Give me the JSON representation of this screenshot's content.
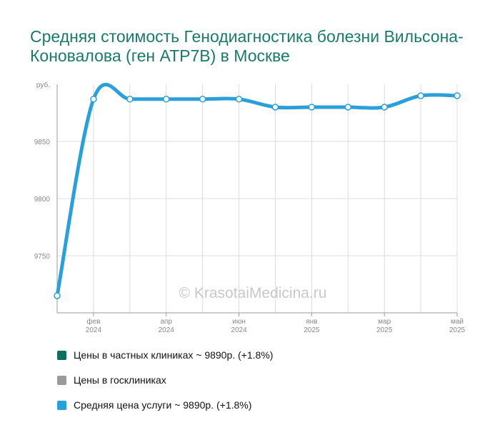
{
  "title": "Средняя стоимость Генодиагностика болезни Вильсона-Коновалова (ген ATP7B) в Москве",
  "watermark": "© KrasotaiMedicina.ru",
  "colors": {
    "series_line": "#2b9fd8",
    "private": "#0f6e5e",
    "public": "#9a9a9a",
    "average": "#2b9fd8"
  },
  "chart_data": {
    "type": "line",
    "title": "Средняя стоимость Генодиагностика болезни Вильсона-Коновалова (ген ATP7B) в Москве",
    "ylabel": "руб.",
    "ylim": [
      9700,
      9900
    ],
    "yticks": [
      9750,
      9800,
      9850
    ],
    "grid": true,
    "legend_position": "bottom",
    "x_tick_labels": [
      {
        "month": "фев",
        "year": "2024",
        "index": 1
      },
      {
        "month": "апр",
        "year": "2024",
        "index": 3
      },
      {
        "month": "июн",
        "year": "2024",
        "index": 5
      },
      {
        "month": "янв",
        "year": "2025",
        "index": 7
      },
      {
        "month": "мар",
        "year": "2025",
        "index": 9
      },
      {
        "month": "май",
        "year": "2025",
        "index": 11
      }
    ],
    "series": [
      {
        "name": "Средняя цена услуги",
        "values": [
          9715,
          9887,
          9887,
          9887,
          9887,
          9887,
          9880,
          9880,
          9880,
          9880,
          9890,
          9890
        ]
      }
    ]
  },
  "legend": [
    {
      "label": "Цены в частных клиниках ~ 9890р. (+1.8%)",
      "color_key": "private"
    },
    {
      "label": "Цены в госклиниках",
      "color_key": "public"
    },
    {
      "label": "Средняя цена услуги ~ 9890р. (+1.8%)",
      "color_key": "average"
    }
  ]
}
